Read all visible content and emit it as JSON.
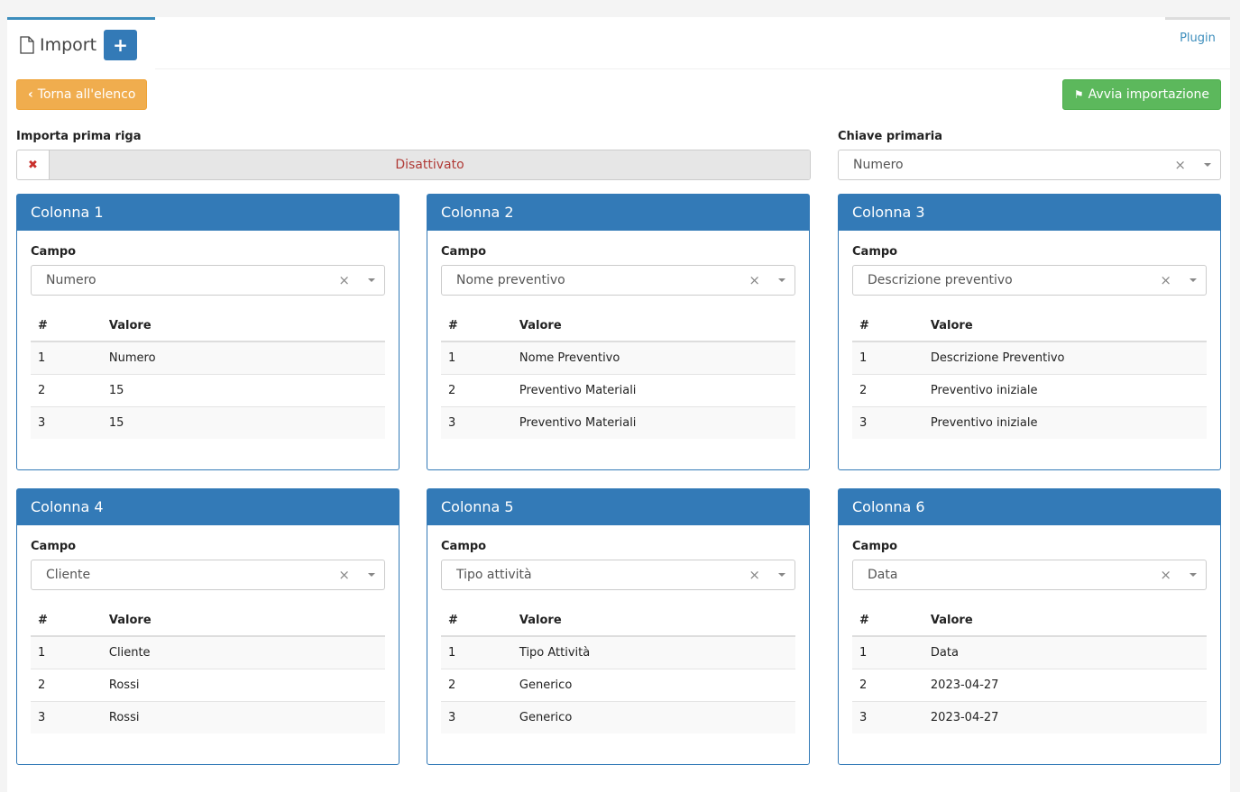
{
  "header": {
    "title": "Import",
    "add_label": "+",
    "plugin_tab": "Plugin"
  },
  "toolbar": {
    "back_label": "Torna all'elenco",
    "start_label": "Avvia importazione"
  },
  "import_first_row": {
    "label": "Importa prima riga",
    "value": "Disattivato"
  },
  "primary_key": {
    "label": "Chiave primaria",
    "value": "Numero"
  },
  "field_label": "Campo",
  "table_headers": [
    "#",
    "Valore"
  ],
  "columns": [
    {
      "title": "Colonna 1",
      "field": "Numero",
      "rows": [
        [
          "1",
          "Numero"
        ],
        [
          "2",
          "15"
        ],
        [
          "3",
          "15"
        ]
      ]
    },
    {
      "title": "Colonna 2",
      "field": "Nome preventivo",
      "rows": [
        [
          "1",
          "Nome Preventivo"
        ],
        [
          "2",
          "Preventivo Materiali"
        ],
        [
          "3",
          "Preventivo Materiali"
        ]
      ]
    },
    {
      "title": "Colonna 3",
      "field": "Descrizione preventivo",
      "rows": [
        [
          "1",
          "Descrizione Preventivo"
        ],
        [
          "2",
          "Preventivo iniziale"
        ],
        [
          "3",
          "Preventivo iniziale"
        ]
      ]
    },
    {
      "title": "Colonna 4",
      "field": "Cliente",
      "rows": [
        [
          "1",
          "Cliente"
        ],
        [
          "2",
          "Rossi"
        ],
        [
          "3",
          "Rossi"
        ]
      ]
    },
    {
      "title": "Colonna 5",
      "field": "Tipo attività",
      "rows": [
        [
          "1",
          "Tipo Attività"
        ],
        [
          "2",
          "Generico"
        ],
        [
          "3",
          "Generico"
        ]
      ]
    },
    {
      "title": "Colonna 6",
      "field": "Data",
      "rows": [
        [
          "1",
          "Data"
        ],
        [
          "2",
          "2023-04-27"
        ],
        [
          "3",
          "2023-04-27"
        ]
      ]
    }
  ]
}
